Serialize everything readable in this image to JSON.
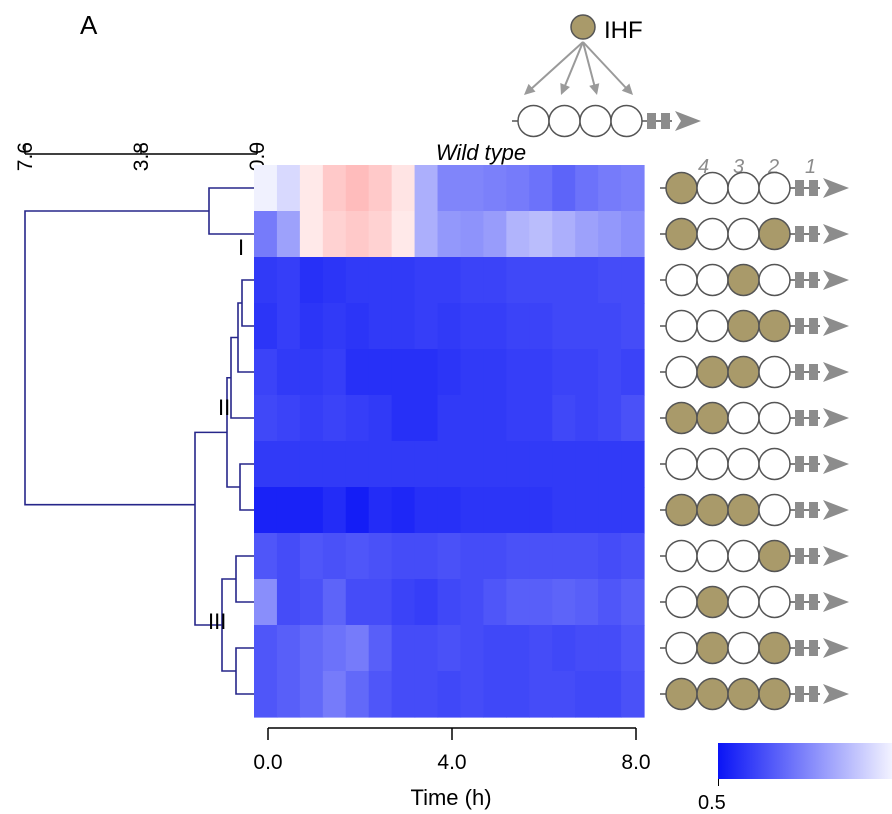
{
  "panel_label": "A",
  "ihf_label": "IHF",
  "colors": {
    "ihf_fill": "#a99a6a",
    "dendrogram": "#26268a",
    "heat_low": "#0a14f6",
    "heat_mid": "#ffffff",
    "heat_high": "#ff2020",
    "promoter": "#8c8c8c",
    "arrow": "#9a9a9a"
  },
  "chart_data": {
    "type": "heatmap",
    "title": "Wild type",
    "xlabel": "Time (h)",
    "x_ticks": [
      "0.0",
      "4.0",
      "8.0"
    ],
    "xlim": [
      0,
      8
    ],
    "time_points": [
      0.0,
      0.5,
      1.0,
      1.5,
      2.0,
      2.5,
      3.0,
      3.5,
      4.0,
      4.5,
      5.0,
      5.5,
      6.0,
      6.5,
      7.0,
      7.5,
      8.0
    ],
    "color_scale": {
      "low_end_label": "0.5",
      "low_color": "#0a14f6",
      "high_color": "#ffffff",
      "above_high_color": "#ff2020"
    },
    "dendrogram_scale": {
      "ticks": [
        "7.6",
        "3.8",
        "0.0"
      ],
      "max": 7.6
    },
    "cluster_labels": [
      "I",
      "II",
      "III"
    ],
    "site_numbers": [
      "4",
      "3",
      "2",
      "1"
    ],
    "rows": [
      {
        "sites": [
          1,
          0,
          0,
          0
        ],
        "values": [
          0.97,
          0.92,
          1.05,
          1.12,
          1.15,
          1.12,
          1.06,
          0.83,
          0.74,
          0.74,
          0.73,
          0.72,
          0.7,
          0.67,
          0.7,
          0.72,
          0.73
        ]
      },
      {
        "sites": [
          1,
          0,
          0,
          1
        ],
        "values": [
          0.72,
          0.8,
          1.05,
          1.1,
          1.12,
          1.1,
          1.05,
          0.83,
          0.78,
          0.77,
          0.79,
          0.84,
          0.86,
          0.83,
          0.8,
          0.78,
          0.76
        ]
      },
      {
        "sites": [
          0,
          0,
          1,
          0
        ],
        "values": [
          0.58,
          0.59,
          0.56,
          0.57,
          0.58,
          0.58,
          0.58,
          0.59,
          0.59,
          0.6,
          0.6,
          0.61,
          0.61,
          0.61,
          0.61,
          0.62,
          0.62
        ]
      },
      {
        "sites": [
          0,
          0,
          1,
          1
        ],
        "values": [
          0.57,
          0.59,
          0.57,
          0.58,
          0.57,
          0.58,
          0.58,
          0.59,
          0.58,
          0.59,
          0.59,
          0.6,
          0.6,
          0.61,
          0.61,
          0.61,
          0.62
        ]
      },
      {
        "sites": [
          0,
          1,
          1,
          0
        ],
        "values": [
          0.6,
          0.58,
          0.58,
          0.59,
          0.56,
          0.56,
          0.56,
          0.56,
          0.57,
          0.58,
          0.58,
          0.59,
          0.59,
          0.6,
          0.6,
          0.61,
          0.6
        ]
      },
      {
        "sites": [
          1,
          1,
          0,
          0
        ],
        "values": [
          0.61,
          0.6,
          0.59,
          0.6,
          0.59,
          0.58,
          0.56,
          0.56,
          0.58,
          0.58,
          0.58,
          0.59,
          0.59,
          0.61,
          0.6,
          0.61,
          0.63
        ]
      },
      {
        "sites": [
          0,
          0,
          0,
          0
        ],
        "values": [
          0.58,
          0.58,
          0.58,
          0.58,
          0.58,
          0.58,
          0.58,
          0.58,
          0.58,
          0.58,
          0.58,
          0.58,
          0.58,
          0.58,
          0.58,
          0.58,
          0.58
        ]
      },
      {
        "sites": [
          1,
          1,
          1,
          0
        ],
        "values": [
          0.53,
          0.53,
          0.53,
          0.55,
          0.52,
          0.55,
          0.54,
          0.56,
          0.56,
          0.57,
          0.57,
          0.57,
          0.57,
          0.58,
          0.58,
          0.58,
          0.58
        ]
      },
      {
        "sites": [
          0,
          0,
          0,
          1
        ],
        "values": [
          0.64,
          0.62,
          0.64,
          0.63,
          0.64,
          0.63,
          0.62,
          0.62,
          0.63,
          0.62,
          0.62,
          0.63,
          0.63,
          0.63,
          0.63,
          0.62,
          0.63
        ]
      },
      {
        "sites": [
          0,
          1,
          0,
          0
        ],
        "values": [
          0.76,
          0.62,
          0.63,
          0.67,
          0.62,
          0.62,
          0.6,
          0.59,
          0.61,
          0.62,
          0.64,
          0.66,
          0.66,
          0.67,
          0.66,
          0.64,
          0.66
        ]
      },
      {
        "sites": [
          0,
          1,
          0,
          1
        ],
        "values": [
          0.64,
          0.66,
          0.68,
          0.7,
          0.72,
          0.66,
          0.62,
          0.62,
          0.63,
          0.62,
          0.61,
          0.61,
          0.62,
          0.61,
          0.62,
          0.62,
          0.64
        ]
      },
      {
        "sites": [
          1,
          1,
          1,
          1
        ],
        "values": [
          0.64,
          0.66,
          0.68,
          0.72,
          0.68,
          0.64,
          0.62,
          0.62,
          0.61,
          0.62,
          0.61,
          0.61,
          0.62,
          0.62,
          0.61,
          0.61,
          0.63
        ]
      }
    ]
  }
}
